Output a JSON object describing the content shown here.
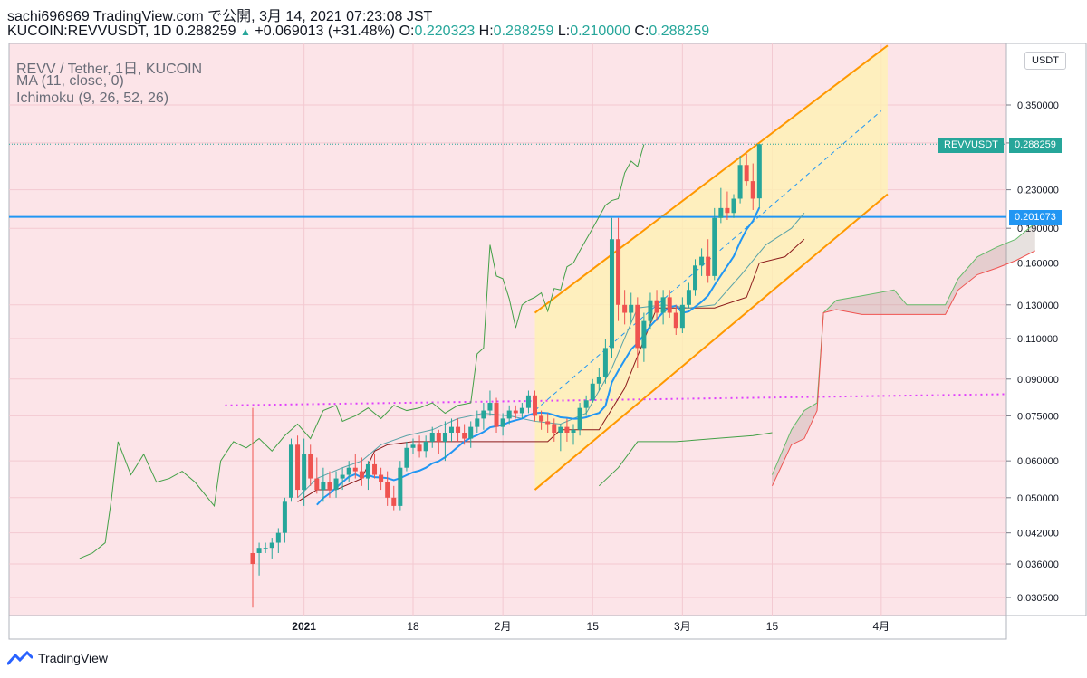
{
  "header": {
    "line1": "sachi696969 TradingView.com で公開, 3月 14, 2021 07:23:08 JST",
    "symbol": "KUCOIN:REVVUSDT, 1D 0.288259",
    "change": "+0.069013 (+31.48%)",
    "o_label": "O:",
    "o_value": "0.220323",
    "h_label": "H:",
    "h_value": "0.288259",
    "l_label": "L:",
    "l_value": "0.210000",
    "c_label": "C:",
    "c_value": "0.288259"
  },
  "legend": {
    "line1": "REVV / Tether, 1日, KUCOIN",
    "line2": "MA (11, close, 0)",
    "line3": "Ichimoku (9, 26, 52, 26)"
  },
  "currency_button": "USDT",
  "price_labels": {
    "current_name": "REVVUSDT",
    "current_value": "0.288259",
    "hline_value": "0.201073"
  },
  "footer": {
    "brand": "TradingView"
  },
  "colors": {
    "up": "#26a69a",
    "down": "#ef5350",
    "background": "#fce4e8",
    "lagging_span": "#43a047",
    "channel": "#ff9800",
    "hline": "#2196f3",
    "ma": "#2196f3",
    "trendline": "#e040fb"
  },
  "chart_data": {
    "type": "candlestick",
    "scale": "log",
    "y_ticks": [
      "0.350000",
      "0.290000",
      "0.230000",
      "0.190000",
      "0.160000",
      "0.130000",
      "0.110000",
      "0.090000",
      "0.075000",
      "0.060000",
      "0.050000",
      "0.042000",
      "0.036000",
      "0.030500"
    ],
    "x_ticks": [
      "2021",
      "18",
      "2月",
      "15",
      "3月",
      "15",
      "4月"
    ],
    "current_price": 0.288259,
    "horizontal_line": 0.201073,
    "candles": [
      {
        "d": "2020-12-24",
        "o": 0.038,
        "h": 0.078,
        "l": 0.029,
        "c": 0.036
      },
      {
        "d": "2020-12-25",
        "o": 0.038,
        "h": 0.04,
        "l": 0.034,
        "c": 0.039
      },
      {
        "d": "2020-12-26",
        "o": 0.039,
        "h": 0.04,
        "l": 0.038,
        "c": 0.039
      },
      {
        "d": "2020-12-27",
        "o": 0.039,
        "h": 0.041,
        "l": 0.037,
        "c": 0.04
      },
      {
        "d": "2020-12-28",
        "o": 0.04,
        "h": 0.043,
        "l": 0.038,
        "c": 0.042
      },
      {
        "d": "2020-12-29",
        "o": 0.042,
        "h": 0.05,
        "l": 0.04,
        "c": 0.049
      },
      {
        "d": "2020-12-30",
        "o": 0.05,
        "h": 0.067,
        "l": 0.049,
        "c": 0.065
      },
      {
        "d": "2020-12-31",
        "o": 0.065,
        "h": 0.068,
        "l": 0.05,
        "c": 0.052
      },
      {
        "d": "2021-01-01",
        "o": 0.052,
        "h": 0.067,
        "l": 0.048,
        "c": 0.062
      },
      {
        "d": "2021-01-02",
        "o": 0.062,
        "h": 0.065,
        "l": 0.053,
        "c": 0.055
      },
      {
        "d": "2021-01-03",
        "o": 0.055,
        "h": 0.061,
        "l": 0.051,
        "c": 0.052
      },
      {
        "d": "2021-01-04",
        "o": 0.052,
        "h": 0.058,
        "l": 0.049,
        "c": 0.054
      },
      {
        "d": "2021-01-05",
        "o": 0.054,
        "h": 0.057,
        "l": 0.05,
        "c": 0.052
      },
      {
        "d": "2021-01-06",
        "o": 0.052,
        "h": 0.057,
        "l": 0.05,
        "c": 0.055
      },
      {
        "d": "2021-01-07",
        "o": 0.055,
        "h": 0.058,
        "l": 0.052,
        "c": 0.056
      },
      {
        "d": "2021-01-08",
        "o": 0.056,
        "h": 0.06,
        "l": 0.054,
        "c": 0.058
      },
      {
        "d": "2021-01-09",
        "o": 0.058,
        "h": 0.062,
        "l": 0.055,
        "c": 0.057
      },
      {
        "d": "2021-01-10",
        "o": 0.057,
        "h": 0.061,
        "l": 0.053,
        "c": 0.055
      },
      {
        "d": "2021-01-11",
        "o": 0.055,
        "h": 0.06,
        "l": 0.052,
        "c": 0.059
      },
      {
        "d": "2021-01-12",
        "o": 0.059,
        "h": 0.062,
        "l": 0.055,
        "c": 0.056
      },
      {
        "d": "2021-01-13",
        "o": 0.056,
        "h": 0.058,
        "l": 0.052,
        "c": 0.054
      },
      {
        "d": "2021-01-14",
        "o": 0.054,
        "h": 0.057,
        "l": 0.048,
        "c": 0.05
      },
      {
        "d": "2021-01-15",
        "o": 0.05,
        "h": 0.053,
        "l": 0.047,
        "c": 0.048
      },
      {
        "d": "2021-01-16",
        "o": 0.048,
        "h": 0.06,
        "l": 0.047,
        "c": 0.058
      },
      {
        "d": "2021-01-17",
        "o": 0.058,
        "h": 0.066,
        "l": 0.057,
        "c": 0.064
      },
      {
        "d": "2021-01-18",
        "o": 0.064,
        "h": 0.067,
        "l": 0.062,
        "c": 0.065
      },
      {
        "d": "2021-01-19",
        "o": 0.065,
        "h": 0.068,
        "l": 0.061,
        "c": 0.063
      },
      {
        "d": "2021-01-20",
        "o": 0.063,
        "h": 0.068,
        "l": 0.061,
        "c": 0.066
      },
      {
        "d": "2021-01-21",
        "o": 0.066,
        "h": 0.071,
        "l": 0.064,
        "c": 0.069
      },
      {
        "d": "2021-01-22",
        "o": 0.069,
        "h": 0.07,
        "l": 0.062,
        "c": 0.066
      },
      {
        "d": "2021-01-23",
        "o": 0.066,
        "h": 0.073,
        "l": 0.06,
        "c": 0.069
      },
      {
        "d": "2021-01-24",
        "o": 0.069,
        "h": 0.074,
        "l": 0.066,
        "c": 0.071
      },
      {
        "d": "2021-01-25",
        "o": 0.071,
        "h": 0.074,
        "l": 0.066,
        "c": 0.069
      },
      {
        "d": "2021-01-26",
        "o": 0.069,
        "h": 0.072,
        "l": 0.065,
        "c": 0.067
      },
      {
        "d": "2021-01-27",
        "o": 0.067,
        "h": 0.073,
        "l": 0.064,
        "c": 0.071
      },
      {
        "d": "2021-01-28",
        "o": 0.071,
        "h": 0.077,
        "l": 0.069,
        "c": 0.074
      },
      {
        "d": "2021-01-29",
        "o": 0.074,
        "h": 0.08,
        "l": 0.07,
        "c": 0.077
      },
      {
        "d": "2021-01-30",
        "o": 0.077,
        "h": 0.085,
        "l": 0.075,
        "c": 0.08
      },
      {
        "d": "2021-01-31",
        "o": 0.08,
        "h": 0.082,
        "l": 0.069,
        "c": 0.071
      },
      {
        "d": "2021-02-01",
        "o": 0.071,
        "h": 0.076,
        "l": 0.068,
        "c": 0.074
      },
      {
        "d": "2021-02-02",
        "o": 0.074,
        "h": 0.079,
        "l": 0.072,
        "c": 0.077
      },
      {
        "d": "2021-02-03",
        "o": 0.077,
        "h": 0.079,
        "l": 0.074,
        "c": 0.076
      },
      {
        "d": "2021-02-04",
        "o": 0.076,
        "h": 0.08,
        "l": 0.074,
        "c": 0.078
      },
      {
        "d": "2021-02-05",
        "o": 0.078,
        "h": 0.085,
        "l": 0.076,
        "c": 0.083
      },
      {
        "d": "2021-02-06",
        "o": 0.083,
        "h": 0.085,
        "l": 0.073,
        "c": 0.075
      },
      {
        "d": "2021-02-07",
        "o": 0.075,
        "h": 0.077,
        "l": 0.07,
        "c": 0.073
      },
      {
        "d": "2021-02-08",
        "o": 0.073,
        "h": 0.076,
        "l": 0.069,
        "c": 0.072
      },
      {
        "d": "2021-02-09",
        "o": 0.072,
        "h": 0.074,
        "l": 0.066,
        "c": 0.069
      },
      {
        "d": "2021-02-10",
        "o": 0.069,
        "h": 0.072,
        "l": 0.063,
        "c": 0.071
      },
      {
        "d": "2021-02-11",
        "o": 0.071,
        "h": 0.074,
        "l": 0.066,
        "c": 0.069
      },
      {
        "d": "2021-02-12",
        "o": 0.069,
        "h": 0.072,
        "l": 0.065,
        "c": 0.07
      },
      {
        "d": "2021-02-13",
        "o": 0.07,
        "h": 0.08,
        "l": 0.068,
        "c": 0.078
      },
      {
        "d": "2021-02-14",
        "o": 0.078,
        "h": 0.083,
        "l": 0.075,
        "c": 0.081
      },
      {
        "d": "2021-02-15",
        "o": 0.081,
        "h": 0.09,
        "l": 0.08,
        "c": 0.088
      },
      {
        "d": "2021-02-16",
        "o": 0.088,
        "h": 0.095,
        "l": 0.085,
        "c": 0.091
      },
      {
        "d": "2021-02-17",
        "o": 0.091,
        "h": 0.11,
        "l": 0.088,
        "c": 0.105
      },
      {
        "d": "2021-02-18",
        "o": 0.105,
        "h": 0.2,
        "l": 0.1,
        "c": 0.18
      },
      {
        "d": "2021-02-19",
        "o": 0.18,
        "h": 0.2,
        "l": 0.12,
        "c": 0.13
      },
      {
        "d": "2021-02-20",
        "o": 0.13,
        "h": 0.14,
        "l": 0.118,
        "c": 0.125
      },
      {
        "d": "2021-02-21",
        "o": 0.125,
        "h": 0.138,
        "l": 0.119,
        "c": 0.13
      },
      {
        "d": "2021-02-22",
        "o": 0.13,
        "h": 0.135,
        "l": 0.095,
        "c": 0.105
      },
      {
        "d": "2021-02-23",
        "o": 0.105,
        "h": 0.125,
        "l": 0.098,
        "c": 0.12
      },
      {
        "d": "2021-02-24",
        "o": 0.12,
        "h": 0.138,
        "l": 0.115,
        "c": 0.133
      },
      {
        "d": "2021-02-25",
        "o": 0.133,
        "h": 0.14,
        "l": 0.12,
        "c": 0.125
      },
      {
        "d": "2021-02-26",
        "o": 0.125,
        "h": 0.14,
        "l": 0.118,
        "c": 0.135
      },
      {
        "d": "2021-02-27",
        "o": 0.135,
        "h": 0.14,
        "l": 0.122,
        "c": 0.125
      },
      {
        "d": "2021-02-28",
        "o": 0.125,
        "h": 0.13,
        "l": 0.112,
        "c": 0.116
      },
      {
        "d": "2021-03-01",
        "o": 0.116,
        "h": 0.135,
        "l": 0.113,
        "c": 0.13
      },
      {
        "d": "2021-03-02",
        "o": 0.13,
        "h": 0.145,
        "l": 0.128,
        "c": 0.14
      },
      {
        "d": "2021-03-03",
        "o": 0.14,
        "h": 0.163,
        "l": 0.136,
        "c": 0.158
      },
      {
        "d": "2021-03-04",
        "o": 0.158,
        "h": 0.172,
        "l": 0.15,
        "c": 0.165
      },
      {
        "d": "2021-03-05",
        "o": 0.165,
        "h": 0.18,
        "l": 0.145,
        "c": 0.15
      },
      {
        "d": "2021-03-06",
        "o": 0.15,
        "h": 0.21,
        "l": 0.147,
        "c": 0.2
      },
      {
        "d": "2021-03-07",
        "o": 0.2,
        "h": 0.232,
        "l": 0.195,
        "c": 0.21
      },
      {
        "d": "2021-03-08",
        "o": 0.21,
        "h": 0.228,
        "l": 0.198,
        "c": 0.205
      },
      {
        "d": "2021-03-09",
        "o": 0.205,
        "h": 0.225,
        "l": 0.2,
        "c": 0.22
      },
      {
        "d": "2021-03-10",
        "o": 0.22,
        "h": 0.272,
        "l": 0.215,
        "c": 0.26
      },
      {
        "d": "2021-03-11",
        "o": 0.26,
        "h": 0.275,
        "l": 0.235,
        "c": 0.24
      },
      {
        "d": "2021-03-12",
        "o": 0.24,
        "h": 0.262,
        "l": 0.208,
        "c": 0.22
      },
      {
        "d": "2021-03-13",
        "o": 0.220323,
        "h": 0.288259,
        "l": 0.21,
        "c": 0.288259
      }
    ]
  }
}
